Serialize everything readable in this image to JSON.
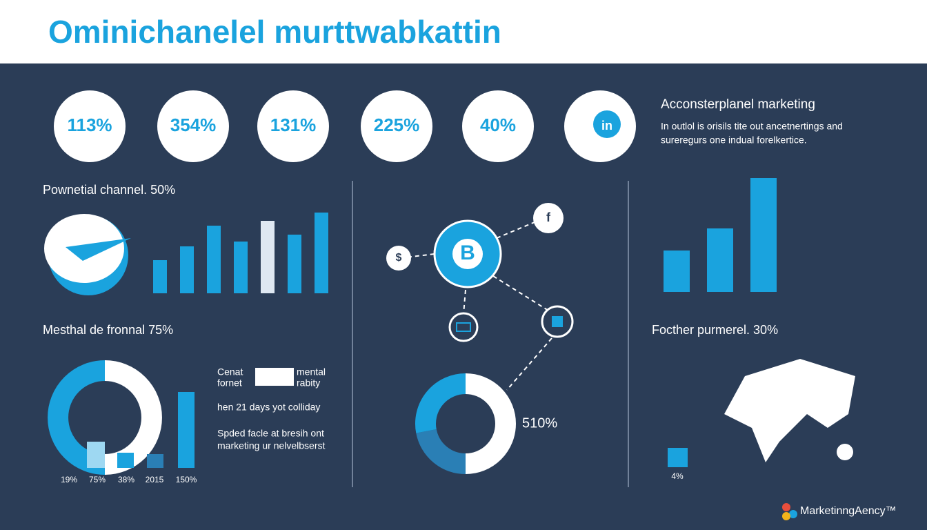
{
  "header": {
    "title": "Ominichanelel murttwabkattin"
  },
  "stats": [
    "113%",
    "354%",
    "131%",
    "225%",
    "40%",
    "in"
  ],
  "intro": {
    "title": "Acconsterplanel marketing",
    "text": [
      "In outlol is orisils tite out ancetnertings and",
      "sureregurs one indual forelkertice."
    ]
  },
  "panel1": {
    "label": "Pownetial channel. 50%",
    "bars": [
      48,
      68,
      98,
      75,
      105,
      85,
      117
    ]
  },
  "panel2": {
    "label": "Mesthal de fronnal 75%",
    "donut": [
      50,
      50
    ],
    "bars": [
      38,
      22,
      20,
      110
    ],
    "axis": [
      "19%",
      "75%",
      "38%",
      "2015",
      "150%"
    ],
    "legend": [
      "Cenat",
      "fornet",
      "mental",
      "rabity",
      "hen 21 days yot colliday",
      "Spded facle at bresih ont",
      "marketing ur nelvelbserst"
    ]
  },
  "network": {
    "nodes": [
      "B",
      "$",
      "f"
    ],
    "donut": [
      22,
      28,
      50
    ],
    "donut_label": "510%"
  },
  "panel3": {
    "bars": [
      60,
      92,
      165
    ],
    "label": "Focther purmerel. 30%",
    "small_bar": 28,
    "small_label": "4%"
  },
  "brand": "MarketinngAency™"
}
